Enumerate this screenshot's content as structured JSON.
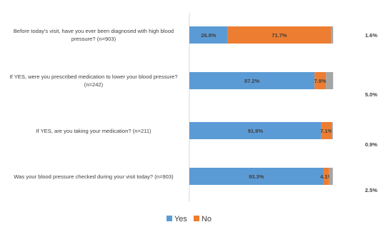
{
  "chart_data": {
    "type": "bar",
    "orientation": "horizontal",
    "stacked": true,
    "categories": [
      "Before today's visit, have you ever been diagnosed with high blood pressure? (n=903)",
      "If YES, were you prescribed medication to lower your blood pressure? (n=242)",
      "If YES, are you taking your medication? (n=211)",
      "Was your blood pressure checked during your visit today? (n=903)"
    ],
    "series": [
      {
        "name": "Yes",
        "color": "#5b9bd5",
        "values": [
          26.8,
          87.2,
          91.9,
          93.3
        ],
        "labels": [
          "26.8%",
          "87.2%",
          "91.9%",
          "93.3%"
        ]
      },
      {
        "name": "No",
        "color": "#ed7d31",
        "values": [
          71.7,
          7.9,
          7.1,
          4.1
        ],
        "labels": [
          "71.7%",
          "7.9%",
          "7.1%",
          "4.1%"
        ]
      },
      {
        "color": "#a5a5a5",
        "values": [
          1.6,
          5.0,
          0.9,
          2.5
        ],
        "labels": [
          "1.6%",
          "5.0%",
          "0.9%",
          "2.5%"
        ]
      }
    ],
    "xlim": [
      0,
      100
    ],
    "legend_position": "bottom",
    "grid": false
  }
}
